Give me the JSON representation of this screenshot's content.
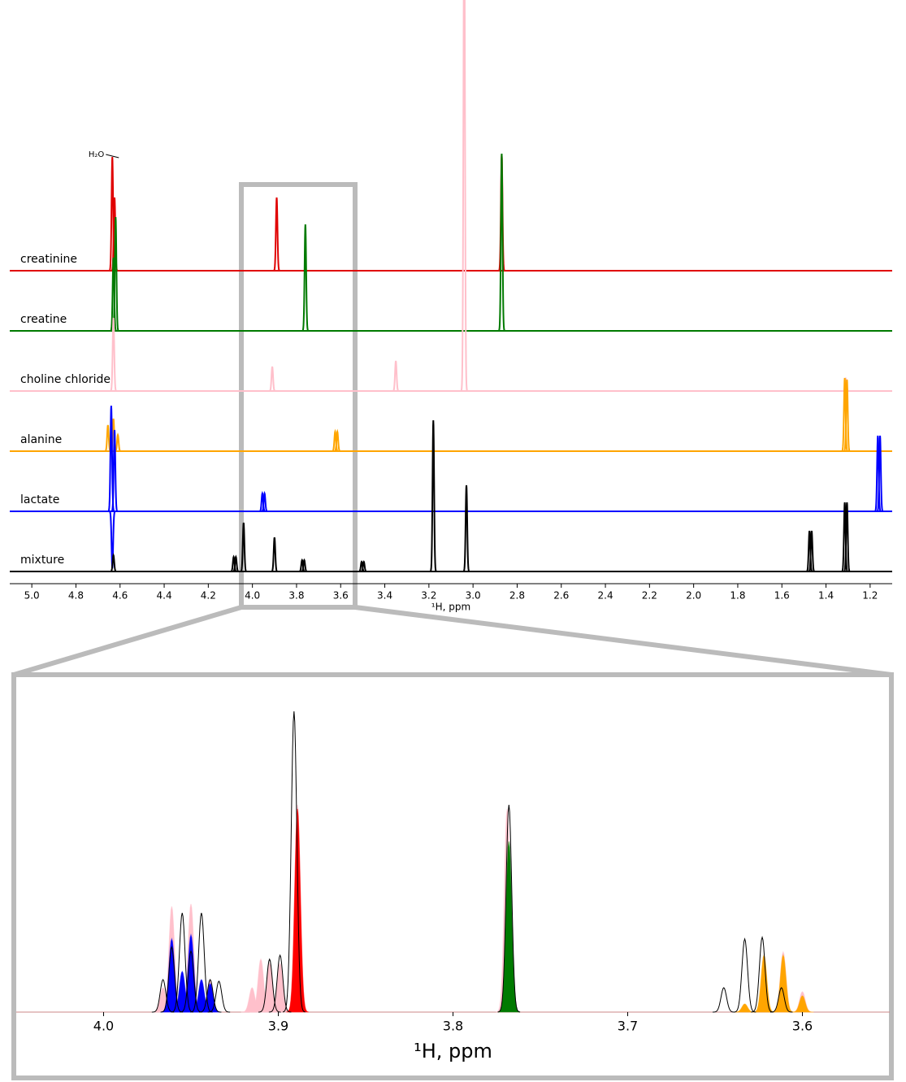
{
  "chart_data": [
    {
      "type": "spectrum",
      "xlabel": "¹H, ppm",
      "annotation": "H₂O",
      "xlim": [
        5.1,
        1.1
      ],
      "xticks": [
        {
          "value": 5,
          "label": "5.0"
        },
        4.8,
        4.6,
        4.4,
        4.2,
        {
          "value": 4,
          "label": "4.0"
        },
        3.8,
        3.6,
        3.4,
        3.2,
        {
          "value": 3,
          "label": "3.0"
        },
        2.8,
        2.6,
        2.4,
        2.2,
        {
          "value": 2,
          "label": "2.0"
        },
        1.8,
        1.6,
        1.4,
        1.2
      ],
      "series": [
        {
          "name": "creatinine",
          "color": "#e00000",
          "x": [
            4.635,
            4.625,
            3.89,
            2.87
          ],
          "values": [
            140,
            90,
            90,
            143
          ]
        },
        {
          "name": "creatine",
          "color": "#007a00",
          "x": [
            4.63,
            4.62,
            3.76,
            2.87
          ],
          "values": [
            90,
            140,
            131,
            218
          ]
        },
        {
          "name": "choline chloride",
          "color": "#ffc0cb",
          "x": [
            4.63,
            3.91,
            3.35,
            3.04,
            1.31
          ],
          "values": [
            90,
            30,
            37,
            600,
            15
          ]
        },
        {
          "name": "alanine",
          "color": "#ffa500",
          "x": [
            4.655,
            4.63,
            4.61,
            3.625,
            3.615,
            1.315,
            1.305
          ],
          "values": [
            32,
            40,
            20,
            24,
            24,
            90,
            88
          ]
        },
        {
          "name": "lactate",
          "color": "#0000ff",
          "x": [
            4.64,
            4.635,
            4.625,
            3.955,
            3.945,
            1.165,
            1.155
          ],
          "values": [
            130,
            -70,
            100,
            22,
            22,
            93,
            93
          ]
        },
        {
          "name": "mixture",
          "color": "#000000",
          "x": [
            4.63,
            4.085,
            4.075,
            4.04,
            3.9,
            3.775,
            3.765,
            3.505,
            3.495,
            3.18,
            3.03,
            1.475,
            1.465,
            1.315,
            1.305
          ],
          "values": [
            20,
            18,
            18,
            60,
            42,
            14,
            14,
            12,
            12,
            186,
            106,
            50,
            50,
            85,
            85
          ]
        }
      ]
    },
    {
      "type": "zoom-spectrum",
      "xlabel": "¹H, ppm",
      "xlim": [
        4.05,
        3.55
      ],
      "xticks": [
        {
          "value": 4,
          "label": "4.0"
        },
        3.9,
        3.8,
        3.7,
        3.6
      ],
      "series": [
        {
          "color": "#ffc0cb",
          "x": [
            3.966,
            3.961,
            3.95,
            3.939,
            3.915,
            3.91,
            3.905,
            3.899,
            3.889,
            3.769,
            3.611,
            3.6
          ],
          "values": [
            30,
            130,
            133,
            40,
            30,
            65,
            60,
            60,
            255,
            250,
            74,
            25
          ]
        },
        {
          "color": "#0000ff",
          "x": [
            3.961,
            3.955,
            3.95,
            3.944,
            3.939
          ],
          "values": [
            90,
            50,
            95,
            40,
            35
          ]
        },
        {
          "color": "#ff0000",
          "x": [
            3.889
          ],
          "values": [
            250
          ]
        },
        {
          "color": "#007a00",
          "x": [
            3.768
          ],
          "values": [
            210
          ]
        },
        {
          "color": "#ffa500",
          "x": [
            3.633,
            3.622,
            3.611,
            3.6
          ],
          "values": [
            10,
            70,
            70,
            20
          ]
        },
        {
          "color": "#000000",
          "x": [
            3.966,
            3.961,
            3.955,
            3.95,
            3.944,
            3.939,
            3.934,
            3.905,
            3.899,
            3.891,
            3.768,
            3.645,
            3.633,
            3.623,
            3.612
          ],
          "values": [
            40,
            80,
            122,
            75,
            122,
            40,
            38,
            65,
            70,
            370,
            255,
            30,
            90,
            92,
            30
          ]
        }
      ]
    }
  ]
}
